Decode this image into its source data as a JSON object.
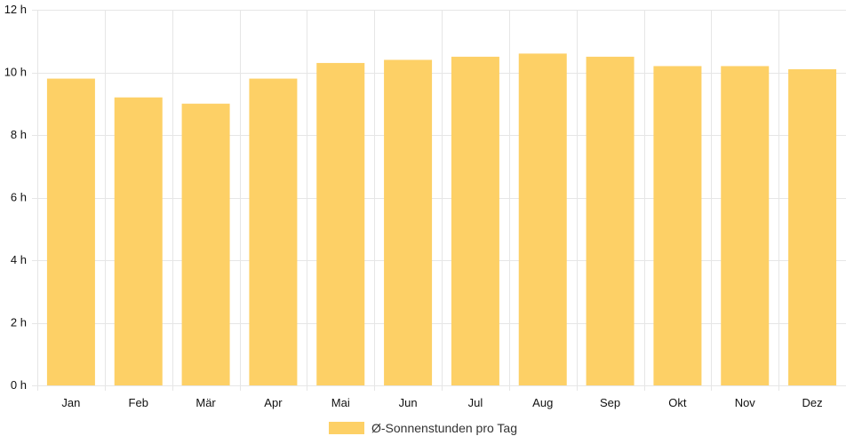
{
  "chart_data": {
    "type": "bar",
    "categories": [
      "Jan",
      "Feb",
      "Mär",
      "Apr",
      "Mai",
      "Jun",
      "Jul",
      "Aug",
      "Sep",
      "Okt",
      "Nov",
      "Dez"
    ],
    "series": [
      {
        "name": "Ø-Sonnenstunden pro Tag",
        "values": [
          9.8,
          9.2,
          9.0,
          9.8,
          10.3,
          10.4,
          10.5,
          10.6,
          10.5,
          10.2,
          10.2,
          10.1
        ],
        "color": "#fdd066"
      }
    ],
    "y_ticks": [
      "0 h",
      "2 h",
      "4 h",
      "6 h",
      "8 h",
      "10 h",
      "12 h"
    ],
    "ylim": [
      0,
      12
    ],
    "grid": true,
    "legend_position": "bottom"
  }
}
